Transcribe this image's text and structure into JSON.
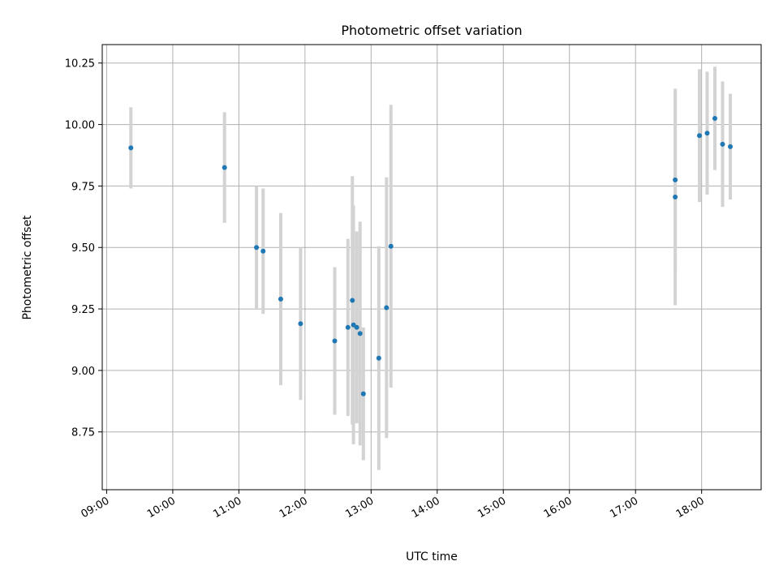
{
  "chart_data": {
    "type": "scatter",
    "title": "Photometric offset variation",
    "xlabel": "UTC time",
    "ylabel": "Photometric offset",
    "x_tick_labels": [
      "09:00",
      "10:00",
      "11:00",
      "12:00",
      "13:00",
      "14:00",
      "15:00",
      "16:00",
      "17:00",
      "18:00"
    ],
    "y_tick_labels": [
      "8.75",
      "9.00",
      "9.25",
      "9.50",
      "9.75",
      "10.00",
      "10.25"
    ],
    "x_ticks": [
      "09:00",
      "10:00",
      "11:00",
      "12:00",
      "13:00",
      "14:00",
      "15:00",
      "16:00",
      "17:00",
      "18:00"
    ],
    "y_ticks": [
      8.75,
      9.0,
      9.25,
      9.5,
      9.75,
      10.0,
      10.25
    ],
    "xlim": [
      "08:56",
      "18:54"
    ],
    "ylim": [
      8.515,
      10.325
    ],
    "grid": true,
    "colors": {
      "point": "#1f77b4",
      "errorbar": "#d3d3d3",
      "grid": "#b0b0b0"
    },
    "series": [
      {
        "points": [
          {
            "x": "09:22",
            "y": 9.905,
            "yerr": 0.165
          },
          {
            "x": "10:47",
            "y": 9.825,
            "yerr": 0.225
          },
          {
            "x": "11:16",
            "y": 9.5,
            "yerr": 0.25
          },
          {
            "x": "11:22",
            "y": 9.485,
            "yerr": 0.255
          },
          {
            "x": "11:38",
            "y": 9.29,
            "yerr": 0.35
          },
          {
            "x": "11:56",
            "y": 9.19,
            "yerr": 0.31
          },
          {
            "x": "12:27",
            "y": 9.12,
            "yerr": 0.3
          },
          {
            "x": "12:39",
            "y": 9.175,
            "yerr": 0.36
          },
          {
            "x": "12:43",
            "y": 9.285,
            "yerr": 0.505
          },
          {
            "x": "12:44",
            "y": 9.185,
            "yerr": 0.485
          },
          {
            "x": "12:47",
            "y": 9.175,
            "yerr": 0.39
          },
          {
            "x": "12:50",
            "y": 9.15,
            "yerr": 0.455
          },
          {
            "x": "12:53",
            "y": 8.905,
            "yerr": 0.27
          },
          {
            "x": "13:07",
            "y": 9.05,
            "yerr": 0.455
          },
          {
            "x": "13:14",
            "y": 9.255,
            "yerr": 0.53
          },
          {
            "x": "13:18",
            "y": 9.505,
            "yerr": 0.575
          },
          {
            "x": "17:36",
            "y": 9.775,
            "yerr": 0.37
          },
          {
            "x": "17:36",
            "y": 9.705,
            "yerr": 0.44
          },
          {
            "x": "17:58",
            "y": 9.955,
            "yerr": 0.27
          },
          {
            "x": "18:05",
            "y": 9.965,
            "yerr": 0.25
          },
          {
            "x": "18:12",
            "y": 10.025,
            "yerr": 0.21
          },
          {
            "x": "18:19",
            "y": 9.92,
            "yerr": 0.255
          },
          {
            "x": "18:26",
            "y": 9.91,
            "yerr": 0.215
          }
        ]
      }
    ]
  }
}
